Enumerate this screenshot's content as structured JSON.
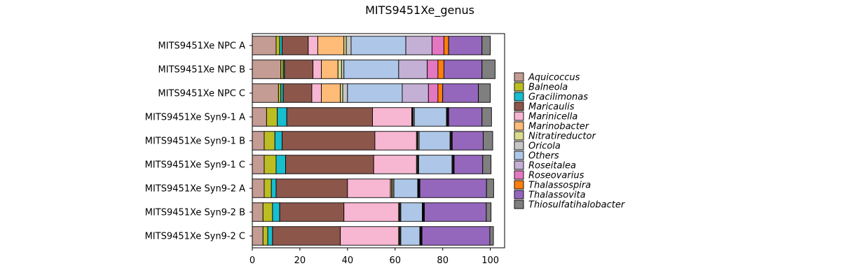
{
  "chart_data": {
    "type": "bar",
    "orientation": "horizontal",
    "stacked": true,
    "title": "MITS9451Xe_genus",
    "xlabel": "",
    "ylabel": "",
    "xlim": [
      0,
      106
    ],
    "xticks": [
      0,
      20,
      40,
      60,
      80,
      100
    ],
    "grid": false,
    "legend_position": "right",
    "categories": [
      "MITS9451Xe NPC A",
      "MITS9451Xe NPC B",
      "MITS9451Xe NPC C",
      "MITS9451Xe Syn9-1 A",
      "MITS9451Xe Syn9-1 B",
      "MITS9451Xe Syn9-1 C",
      "MITS9451Xe Syn9-2 A",
      "MITS9451Xe Syn9-2 B",
      "MITS9451Xe Syn9-2 C"
    ],
    "series": [
      {
        "name": "Aquicoccus",
        "color": "#c49c94",
        "values": [
          10,
          12,
          11,
          6,
          5,
          5,
          5,
          4.5,
          4.5
        ]
      },
      {
        "name": "Balneola",
        "color": "#bcbd22",
        "values": [
          1.5,
          1,
          1,
          4.5,
          4.5,
          5,
          3,
          4,
          2
        ]
      },
      {
        "name": "Gracilimonas",
        "color": "#17becf",
        "values": [
          1,
          0.5,
          1,
          4,
          3,
          4,
          2,
          3,
          2
        ]
      },
      {
        "name": "Maricaulis",
        "color": "#8c564b",
        "values": [
          11,
          12,
          12,
          36,
          39,
          37,
          30,
          27,
          28.5
        ]
      },
      {
        "name": "Marinicella",
        "color": "#f7b6d2",
        "values": [
          4,
          3.5,
          4,
          16.5,
          17.5,
          18,
          18,
          23,
          24.5
        ]
      },
      {
        "name": "Marinobacter",
        "color": "#ffbb78",
        "values": [
          11,
          7,
          8,
          0.3,
          0.3,
          0.3,
          0.5,
          0.3,
          0.3
        ]
      },
      {
        "name": "Nitratireductor",
        "color": "#dbdb8d",
        "values": [
          1,
          1.5,
          1,
          0.3,
          0.3,
          0.3,
          0.5,
          0.3,
          0.3
        ]
      },
      {
        "name": "Oricola",
        "color": "#c7c7c7",
        "values": [
          2,
          1,
          2,
          0.5,
          0.5,
          0.3,
          0.5,
          0.3,
          0.3
        ]
      },
      {
        "name": "Others",
        "color": "#aec7e8",
        "values": [
          23,
          23,
          23,
          13.5,
          13,
          14,
          10,
          9,
          8
        ]
      },
      {
        "name": "Roseitalea",
        "color": "#c5b0d5",
        "values": [
          11,
          12,
          11,
          0.3,
          0.3,
          0.3,
          0.3,
          0.3,
          0.3
        ]
      },
      {
        "name": "Roseovarius",
        "color": "#e377c2",
        "values": [
          5,
          4.5,
          4,
          0.3,
          0.3,
          0.3,
          0.3,
          0.3,
          0.3
        ]
      },
      {
        "name": "Thalassospira",
        "color": "#ff7f0e",
        "values": [
          2,
          2.5,
          2,
          0.3,
          0.3,
          0.3,
          0.3,
          0.3,
          0.3
        ]
      },
      {
        "name": "Thalassovita",
        "color": "#9467bd",
        "values": [
          14,
          16,
          15,
          14,
          13,
          12,
          28,
          26,
          28.5
        ]
      },
      {
        "name": "Thiosulfatihalobacter",
        "color": "#7f7f7f",
        "values": [
          3.5,
          5.5,
          5,
          4,
          4,
          3.5,
          3,
          2,
          1.5
        ]
      }
    ]
  }
}
